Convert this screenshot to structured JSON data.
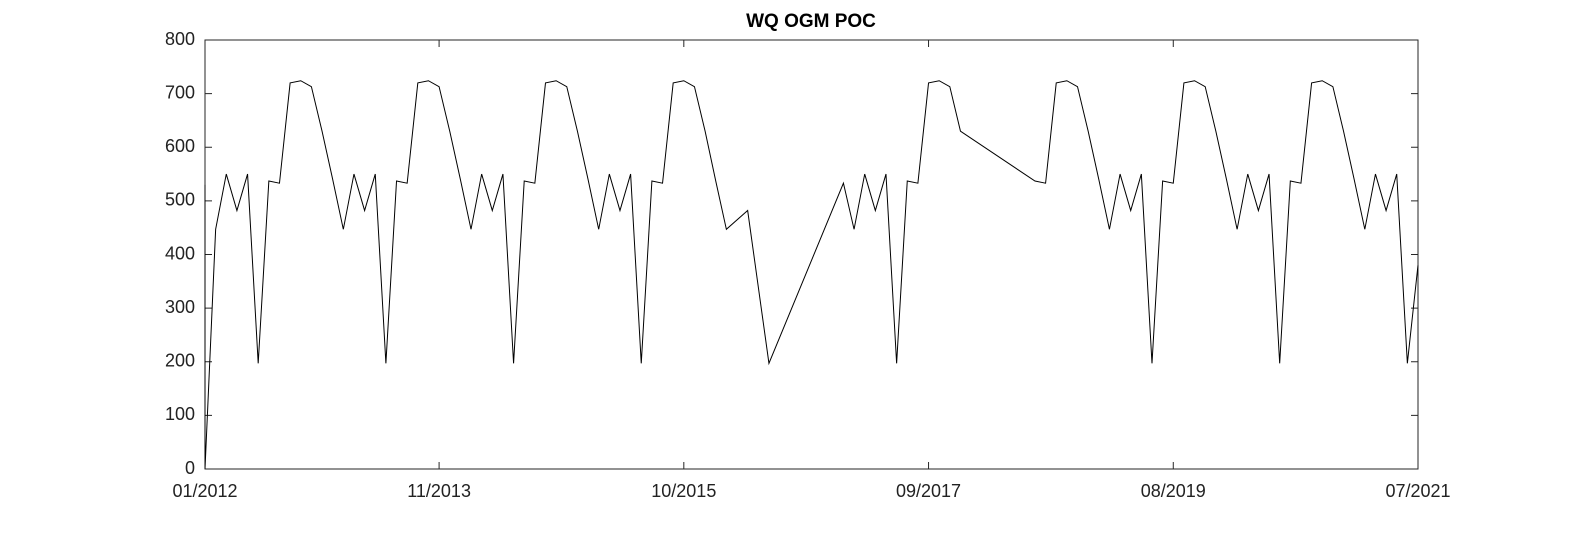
{
  "chart_data": {
    "type": "line",
    "title": "WQ OGM POC",
    "x": [
      "2012-01",
      "2012-01",
      "2012-02",
      "2012-03",
      "2012-04",
      "2012-05",
      "2012-06",
      "2012-07",
      "2012-08",
      "2012-09",
      "2012-10",
      "2012-11",
      "2012-12",
      "2013-01",
      "2013-02",
      "2013-03",
      "2013-04",
      "2013-05",
      "2013-06",
      "2013-07",
      "2013-08",
      "2013-09",
      "2013-10",
      "2013-11",
      "2013-12",
      "2014-01",
      "2014-02",
      "2014-03",
      "2014-04",
      "2014-05",
      "2014-06",
      "2014-07",
      "2014-08",
      "2014-09",
      "2014-10",
      "2014-11",
      "2014-12",
      "2015-01",
      "2015-02",
      "2015-03",
      "2015-04",
      "2015-05",
      "2015-06",
      "2015-07",
      "2015-08",
      "2015-09",
      "2015-10",
      "2015-11",
      "2015-12",
      "2016-01",
      "2016-02",
      "2016-04",
      "2016-06",
      "2017-01",
      "2017-02",
      "2017-03",
      "2017-04",
      "2017-05",
      "2017-06",
      "2017-07",
      "2017-08",
      "2017-09",
      "2017-10",
      "2017-11",
      "2017-12",
      "2018-07",
      "2018-08",
      "2018-09",
      "2018-10",
      "2018-11",
      "2018-12",
      "2019-01",
      "2019-02",
      "2019-03",
      "2019-04",
      "2019-05",
      "2019-06",
      "2019-07",
      "2019-08",
      "2019-09",
      "2019-10",
      "2019-11",
      "2019-12",
      "2020-01",
      "2020-02",
      "2020-03",
      "2020-04",
      "2020-05",
      "2020-06",
      "2020-07",
      "2020-08",
      "2020-09",
      "2020-10",
      "2020-11",
      "2020-12",
      "2021-01",
      "2021-02",
      "2021-03",
      "2021-04",
      "2021-05",
      "2021-06",
      "2021-07"
    ],
    "series": [
      {
        "color": "#000000",
        "values": [
          530,
          0,
          447,
          550,
          482,
          550,
          197,
          537,
          533,
          720,
          724,
          713,
          630,
          540,
          447,
          550,
          482,
          550,
          197,
          537,
          533,
          720,
          724,
          713,
          630,
          540,
          447,
          550,
          482,
          550,
          197,
          537,
          533,
          720,
          724,
          713,
          630,
          540,
          447,
          550,
          482,
          550,
          197,
          537,
          533,
          720,
          724,
          713,
          630,
          537,
          447,
          482,
          197,
          533,
          447,
          550,
          482,
          550,
          197,
          537,
          533,
          720,
          724,
          713,
          630,
          537,
          533,
          720,
          724,
          713,
          630,
          540,
          447,
          550,
          482,
          550,
          197,
          537,
          533,
          720,
          724,
          713,
          630,
          540,
          447,
          550,
          482,
          550,
          197,
          537,
          533,
          720,
          724,
          713,
          630,
          540,
          447,
          550,
          482,
          550,
          197,
          380
        ]
      }
    ],
    "xlim": [
      "2012-01",
      "2021-07"
    ],
    "xticks": [
      {
        "value": "2012-01",
        "label": "01/2012"
      },
      {
        "value": "2013-11",
        "label": "11/2013"
      },
      {
        "value": "2015-10",
        "label": "10/2015"
      },
      {
        "value": "2017-09",
        "label": "09/2017"
      },
      {
        "value": "2019-08",
        "label": "08/2019"
      },
      {
        "value": "2021-07",
        "label": "07/2021"
      }
    ],
    "ylim": [
      0,
      800
    ],
    "yticks": [
      0,
      100,
      200,
      300,
      400,
      500,
      600,
      700,
      800
    ]
  }
}
